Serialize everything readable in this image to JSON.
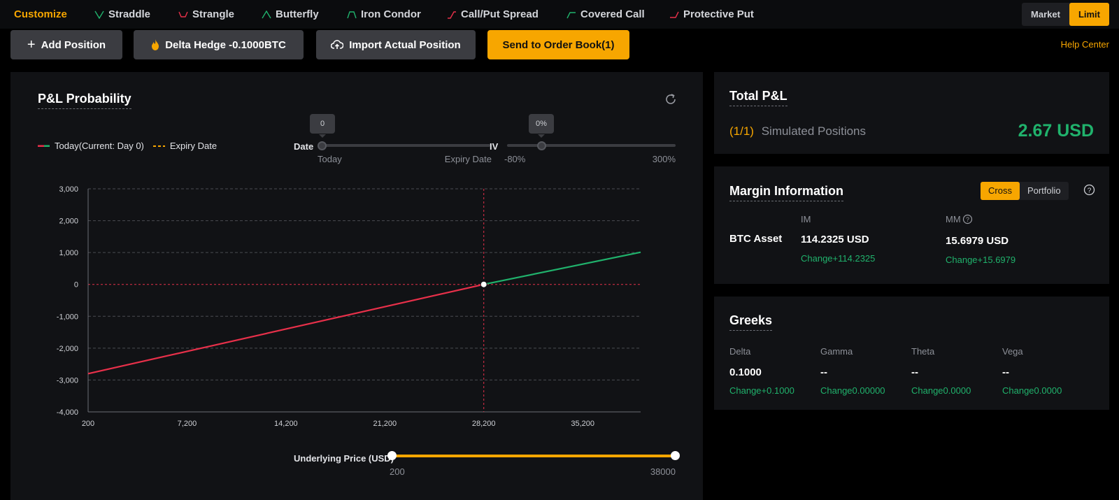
{
  "tabs": [
    {
      "label": "Customize",
      "icon": "none",
      "active": true
    },
    {
      "label": "Straddle",
      "icon": "straddle-icon"
    },
    {
      "label": "Strangle",
      "icon": "strangle-icon"
    },
    {
      "label": "Butterfly",
      "icon": "butterfly-icon"
    },
    {
      "label": "Iron Condor",
      "icon": "iron-condor-icon"
    },
    {
      "label": "Call/Put Spread",
      "icon": "spread-icon"
    },
    {
      "label": "Covered Call",
      "icon": "covered-call-icon"
    },
    {
      "label": "Protective Put",
      "icon": "protective-put-icon"
    }
  ],
  "order_type": {
    "market": "Market",
    "limit": "Limit",
    "selected": "Limit"
  },
  "actions": {
    "add_position": "Add Position",
    "delta_hedge": "Delta Hedge -0.1000BTC",
    "import": "Import Actual Position",
    "send": "Send to Order Book(1)"
  },
  "help_center": "Help Center",
  "pl": {
    "title": "P&L Probability",
    "legend_today": "Today(Current: Day 0)",
    "legend_expiry": "Expiry Date",
    "date_label": "Date",
    "date_value": "0",
    "date_min": "Today",
    "date_max": "Expiry Date",
    "iv_label": "IV",
    "iv_value": "0%",
    "iv_min": "-80%",
    "iv_max": "300%",
    "underlying_label": "Underlying Price (USD)",
    "underlying_min": "200",
    "underlying_max": "38000"
  },
  "chart_data": {
    "type": "line",
    "y_ticks": [
      "3,000",
      "2,000",
      "1,000",
      "0",
      "-1,000",
      "-2,000",
      "-3,000",
      "-4,000"
    ],
    "x_ticks": [
      "200",
      "7,200",
      "14,200",
      "21,200",
      "28,200",
      "35,200"
    ],
    "xlim": [
      200,
      39300
    ],
    "ylim": [
      -4000,
      3000
    ],
    "marker_x": 28200,
    "series": [
      {
        "name": "Today(Current: Day 0)",
        "x": [
          200,
          28200,
          39300
        ],
        "y": [
          -2800,
          0,
          1010
        ]
      }
    ],
    "colors": {
      "loss": "#e8304a",
      "profit": "#20b26c",
      "expiry": "#f7a600"
    }
  },
  "total": {
    "title": "Total P&L",
    "count": "(1/1)",
    "label": "Simulated Positions",
    "value": "2.67 USD"
  },
  "margin": {
    "title": "Margin Information",
    "cross": "Cross",
    "portfolio": "Portfolio",
    "asset": "BTC Asset",
    "im_label": "IM",
    "im_value": "114.2325 USD",
    "im_change": "Change+114.2325",
    "mm_label": "MM",
    "mm_value": "15.6979 USD",
    "mm_change": "Change+15.6979"
  },
  "greeks": {
    "title": "Greeks",
    "items": [
      {
        "label": "Delta",
        "value": "0.1000",
        "change": "Change+0.1000"
      },
      {
        "label": "Gamma",
        "value": "--",
        "change": "Change0.00000"
      },
      {
        "label": "Theta",
        "value": "--",
        "change": "Change0.0000"
      },
      {
        "label": "Vega",
        "value": "--",
        "change": "Change0.0000"
      }
    ]
  }
}
